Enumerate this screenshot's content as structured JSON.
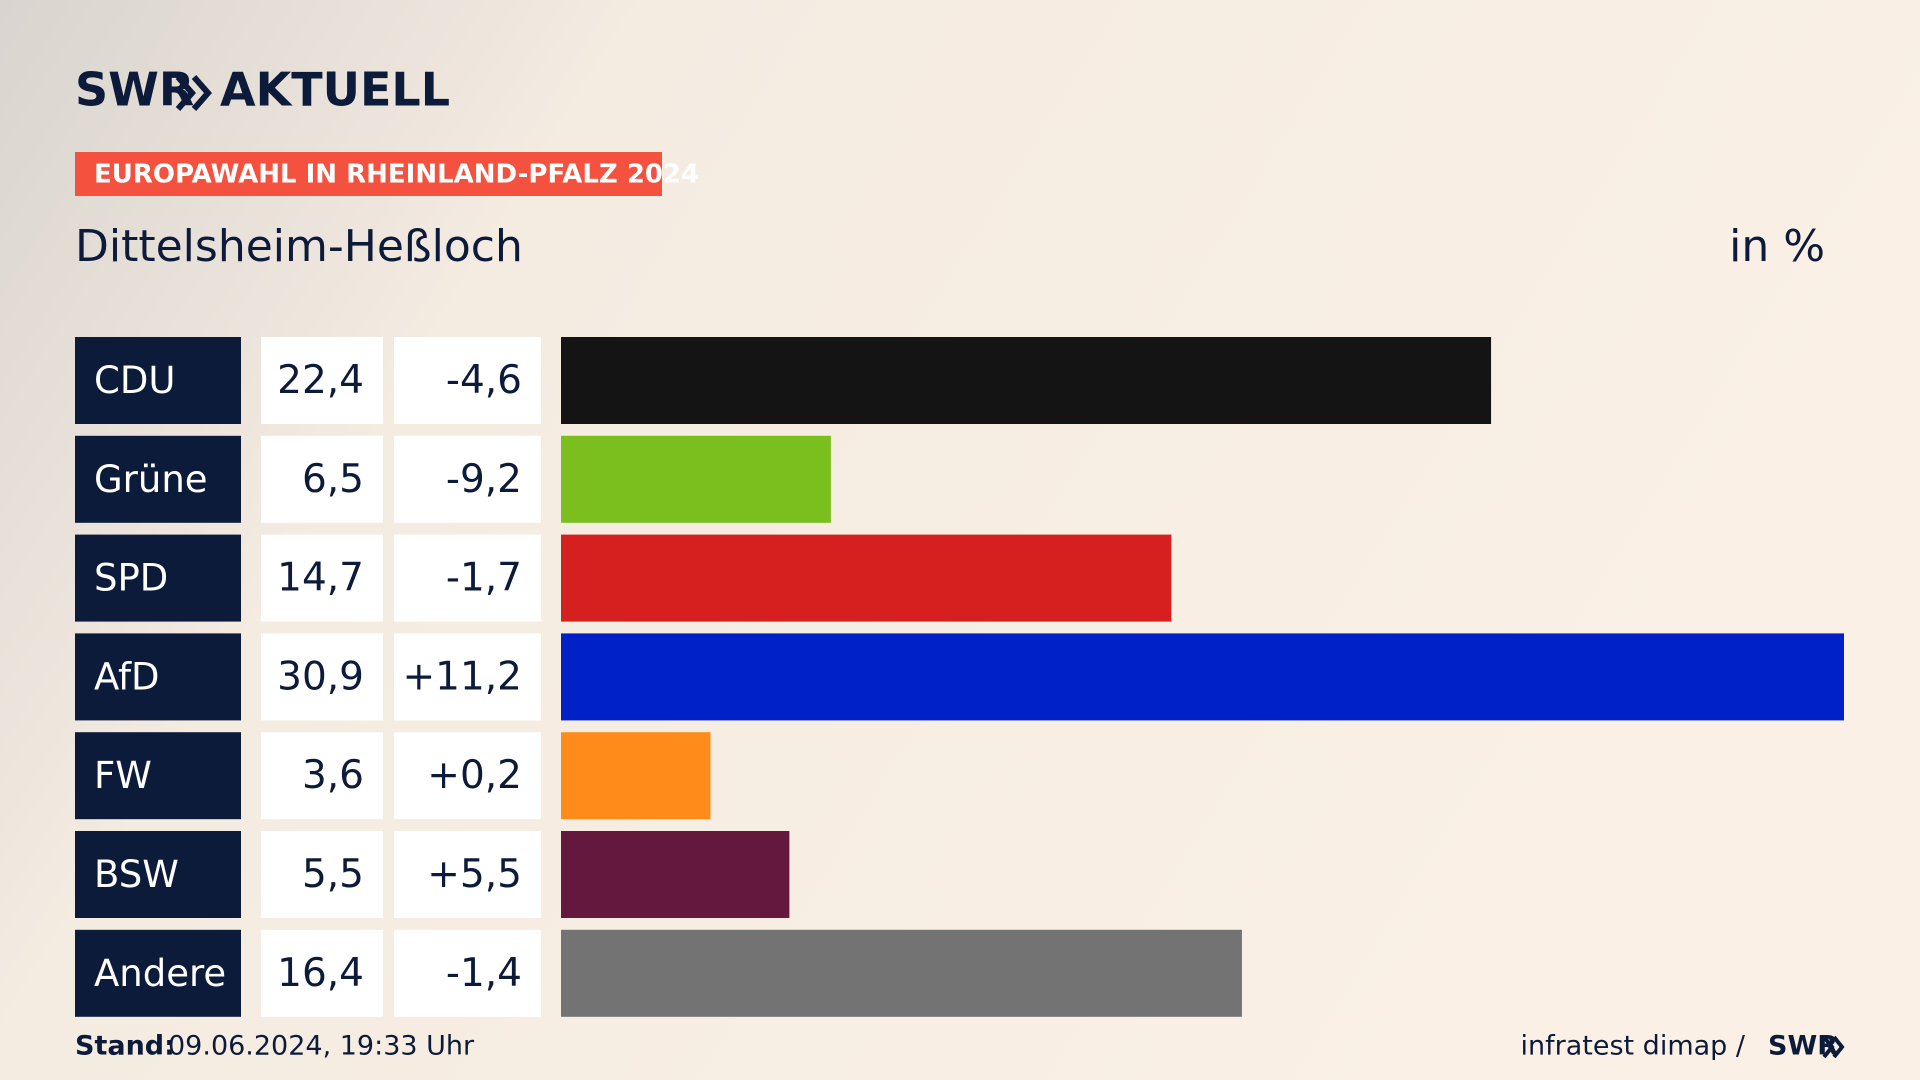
{
  "chart_data": {
    "type": "bar",
    "brand": "SWR",
    "brand_suffix": "AKTUELL",
    "subtitle": "EUROPAWAHL IN RHEINLAND-PFALZ 2024",
    "title": "Dittelsheim-Heßloch",
    "unit_label": "in %",
    "categories": [
      "CDU",
      "Grüne",
      "SPD",
      "AfD",
      "FW",
      "BSW",
      "Andere"
    ],
    "values": [
      22.4,
      6.5,
      14.7,
      30.9,
      3.6,
      5.5,
      16.4
    ],
    "value_labels": [
      "22,4",
      "6,5",
      "14,7",
      "30,9",
      "3,6",
      "5,5",
      "16,4"
    ],
    "changes": [
      -4.6,
      -9.2,
      -1.7,
      11.2,
      0.2,
      5.5,
      -1.4
    ],
    "change_labels": [
      "-4,6",
      "-9,2",
      "-1,7",
      "+11,2",
      "+0,2",
      "+5,5",
      "-1,4"
    ],
    "colors": [
      "#141414",
      "#7abf1e",
      "#d61f1f",
      "#0020c8",
      "#ff8c1a",
      "#65183e",
      "#737373"
    ],
    "footer_label": "Stand:",
    "footer_date": "09.06.2024, 19:33 Uhr",
    "source": "infratest dimap /",
    "source_brand": "SWR"
  }
}
